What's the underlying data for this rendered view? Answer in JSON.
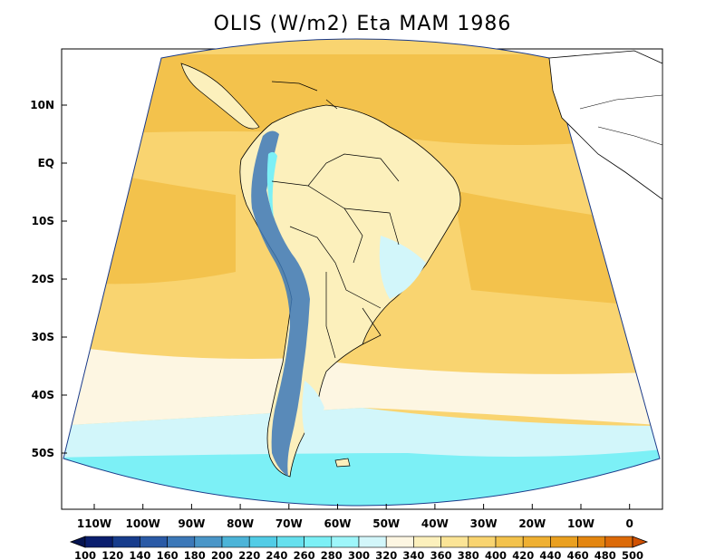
{
  "title": "OLIS (W/m2) Eta MAM 1986",
  "lat_axis": {
    "labels": [
      "10N",
      "EQ",
      "10S",
      "20S",
      "30S",
      "40S",
      "50S"
    ]
  },
  "lon_axis": {
    "labels": [
      "110W",
      "100W",
      "90W",
      "80W",
      "70W",
      "60W",
      "50W",
      "40W",
      "30W",
      "20W",
      "10W",
      "0"
    ]
  },
  "colorbar": {
    "levels": [
      "100",
      "120",
      "140",
      "160",
      "180",
      "200",
      "220",
      "240",
      "260",
      "280",
      "300",
      "320",
      "340",
      "360",
      "380",
      "400",
      "420",
      "440",
      "460",
      "480",
      "500"
    ],
    "colors": [
      "#0a1e6e",
      "#173c8c",
      "#2a5aa6",
      "#3c78b8",
      "#4a96c8",
      "#4cb4d8",
      "#52cce6",
      "#66e0ee",
      "#7cf0f6",
      "#9ef6fa",
      "#d2f6fa",
      "#fdf6e2",
      "#fcf0bc",
      "#fbe496",
      "#f9d470",
      "#f3c24c",
      "#efb032",
      "#eaa020",
      "#e48610",
      "#dc6a08"
    ],
    "under_color": "#061450",
    "over_color": "#d05000"
  },
  "colors": {
    "background": "#ffffff",
    "frame": "#000000",
    "land_outline": "#000000",
    "ocean_warm": "#f3c24c",
    "ocean_mid": "#f9d470",
    "ocean_cool": "#fdf6e2",
    "ocean_cold": "#9ef6fa",
    "andes": "#3c78b8"
  }
}
